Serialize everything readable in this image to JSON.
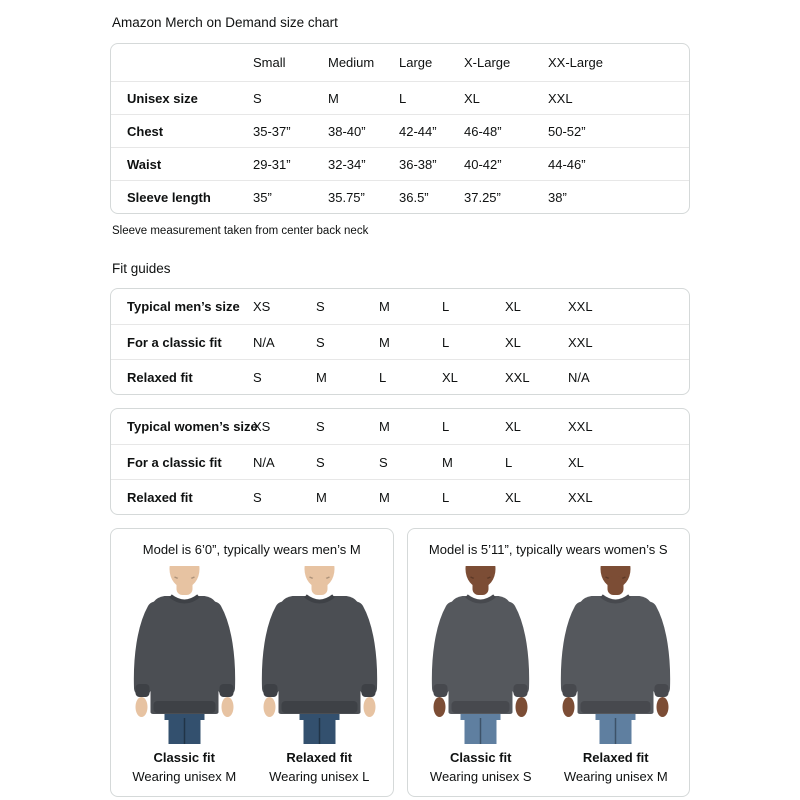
{
  "page": {
    "title": "Amazon Merch on Demand size chart",
    "note": "Sleeve measurement taken from center back neck",
    "fit_guides_heading": "Fit guides"
  },
  "size_chart": {
    "columns": [
      "Small",
      "Medium",
      "Large",
      "X-Large",
      "XX-Large"
    ],
    "rows": [
      {
        "label": "Unisex size",
        "values": [
          "S",
          "M",
          "L",
          "XL",
          "XXL"
        ]
      },
      {
        "label": "Chest",
        "values": [
          "35-37”",
          "38-40”",
          "42-44”",
          "46-48”",
          "50-52”"
        ]
      },
      {
        "label": "Waist",
        "values": [
          "29-31”",
          "32-34”",
          "36-38”",
          "40-42”",
          "44-46”"
        ]
      },
      {
        "label": "Sleeve length",
        "values": [
          "35”",
          "35.75”",
          "36.5”",
          "37.25”",
          "38”"
        ]
      }
    ]
  },
  "fit_guide_men": {
    "rows": [
      {
        "label": "Typical men’s size",
        "values": [
          "XS",
          "S",
          "M",
          "L",
          "XL",
          "XXL"
        ]
      },
      {
        "label": "For a classic fit",
        "values": [
          "N/A",
          "S",
          "M",
          "L",
          "XL",
          "XXL"
        ]
      },
      {
        "label": "Relaxed fit",
        "values": [
          "S",
          "M",
          "L",
          "XL",
          "XXL",
          "N/A"
        ]
      }
    ]
  },
  "fit_guide_women": {
    "rows": [
      {
        "label": "Typical women’s size",
        "values": [
          "XS",
          "S",
          "M",
          "L",
          "XL",
          "XXL"
        ]
      },
      {
        "label": "For a classic fit",
        "values": [
          "N/A",
          "S",
          "S",
          "M",
          "L",
          "XL"
        ]
      },
      {
        "label": "Relaxed fit",
        "values": [
          "S",
          "M",
          "M",
          "L",
          "XL",
          "XXL"
        ]
      }
    ]
  },
  "model_cards": {
    "men": {
      "title": "Model is 6’0”, typically wears men’s M",
      "figures": [
        {
          "fit": "Classic fit",
          "wearing": "Wearing unisex M"
        },
        {
          "fit": "Relaxed fit",
          "wearing": "Wearing unisex L"
        }
      ]
    },
    "women": {
      "title": "Model is 5’11”, typically wears women’s S",
      "figures": [
        {
          "fit": "Classic fit",
          "wearing": "Wearing unisex S"
        },
        {
          "fit": "Relaxed fit",
          "wearing": "Wearing unisex M"
        }
      ]
    }
  },
  "colors": {
    "text": "#0f1111",
    "table_border": "#d5d9d9",
    "row_divider": "#e7e7e7",
    "sweatshirt_men": "#4b4e53",
    "sweatshirt_men_dark": "#3e4146",
    "sweatshirt_women": "#55585d",
    "sweatshirt_women_dark": "#47494e",
    "jeans_men": "#33506e",
    "jeans_women": "#5f7fa0",
    "skin_men": "#e7c3a2",
    "skin_women": "#7c4d35"
  }
}
